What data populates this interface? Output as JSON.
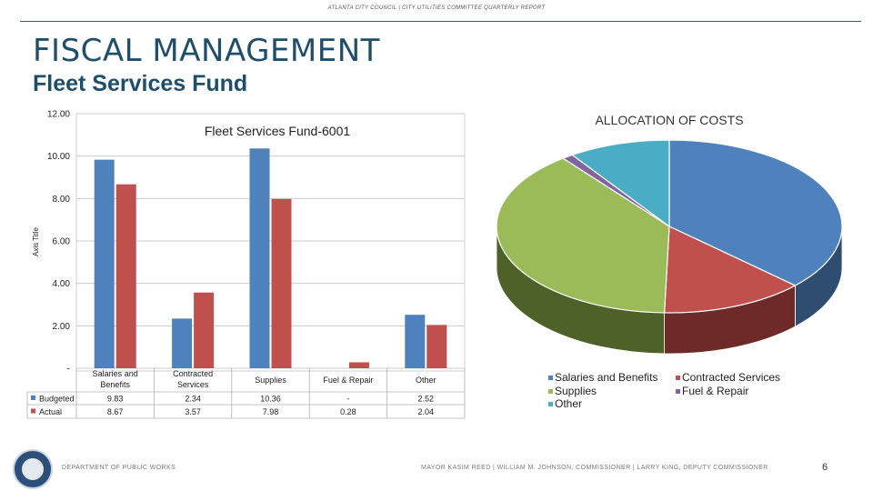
{
  "header": {
    "report_line": "ATLANTA CITY COUNCIL | CITY UTILITIES COMMITTEE QUARTERLY REPORT",
    "title": "FISCAL MANAGEMENT",
    "subtitle": "Fleet Services Fund"
  },
  "colors": {
    "budgeted": "#4f81bd",
    "actual": "#c0504d",
    "supplies": "#9bbb59",
    "fuel": "#8064a2",
    "other": "#4bacc6"
  },
  "chart_data": [
    {
      "type": "bar",
      "title": "Fleet Services Fund-6001",
      "ylabel": "Axis Title",
      "ylim": [
        0,
        12
      ],
      "yticks": [
        "12.00",
        "10.00",
        "8.00",
        "6.00",
        "4.00",
        "2.00",
        "-"
      ],
      "categories": [
        "Salaries and Benefits",
        "Contracted Services",
        "Supplies",
        "Fuel & Repair",
        "Other"
      ],
      "series": [
        {
          "name": "Budgeted",
          "values": [
            9.83,
            2.34,
            10.36,
            0,
            2.52
          ],
          "labels": [
            "9.83",
            "2.34",
            "10.36",
            "-",
            "2.52"
          ]
        },
        {
          "name": "Actual",
          "values": [
            8.67,
            3.57,
            7.98,
            0.28,
            2.04
          ],
          "labels": [
            "8.67",
            "3.57",
            "7.98",
            "0.28",
            "2.04"
          ]
        }
      ]
    },
    {
      "type": "pie",
      "title": "ALLOCATION OF COSTS",
      "categories": [
        "Salaries and Benefits",
        "Contracted Services",
        "Supplies",
        "Fuel & Repair",
        "Other"
      ],
      "values": [
        9.83,
        3.57,
        10.36,
        0.28,
        2.52
      ]
    }
  ],
  "footer": {
    "department": "DEPARTMENT OF PUBLIC WORKS",
    "officials": "MAYOR KASIM REED | WILLIAM M. JOHNSON, COMMISSIONER | LARRY KING, DEPUTY COMMISSIONER",
    "page": "6"
  }
}
